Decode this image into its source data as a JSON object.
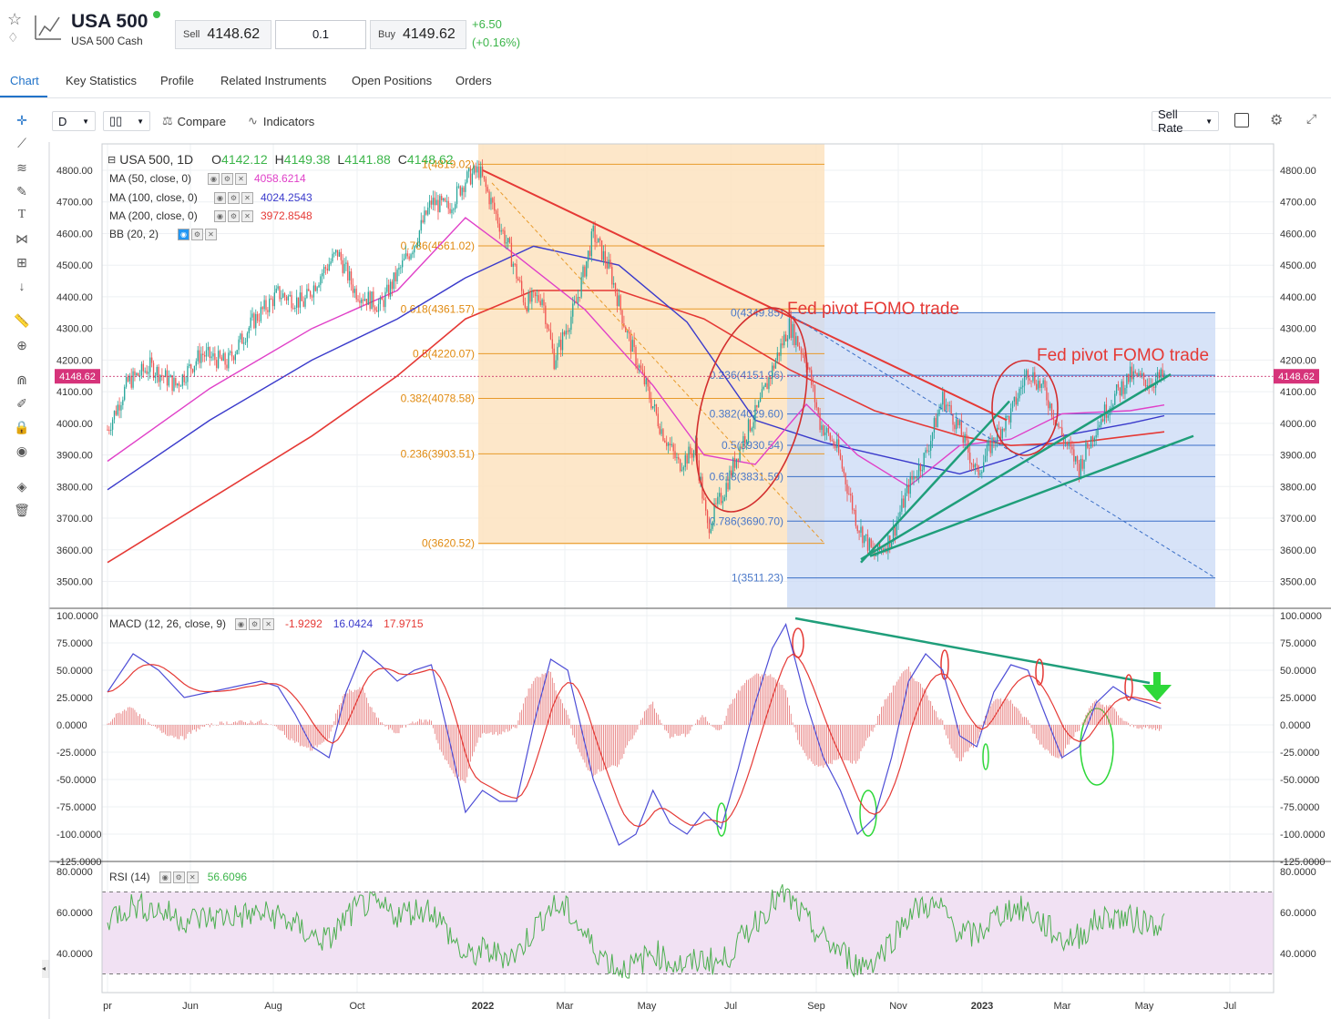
{
  "instrument": {
    "name": "USA 500",
    "subtitle": "USA 500 Cash",
    "sell_label": "Sell",
    "sell_price": "4148.62",
    "quantity": "0.1",
    "buy_label": "Buy",
    "buy_price": "4149.62",
    "change_abs": "+6.50",
    "change_pct": "(+0.16%)"
  },
  "tabs": [
    "Chart",
    "Key Statistics",
    "Profile",
    "Related Instruments",
    "Open Positions",
    "Orders"
  ],
  "active_tab": "Chart",
  "toolbar": {
    "interval": "D",
    "compare_label": "Compare",
    "indicators_label": "Indicators",
    "rate_label": "Sell Rate"
  },
  "chart_data": {
    "type": "candlestick",
    "symbol_label": "USA 500, 1D",
    "ohlc": {
      "o": "4142.12",
      "h": "4149.38",
      "l": "4141.88",
      "c": "4148.62"
    },
    "last_price_tag": "4148.62",
    "ylim": [
      3470,
      4860
    ],
    "price_ticks": [
      "4800.00",
      "4700.00",
      "4600.00",
      "4500.00",
      "4400.00",
      "4300.00",
      "4200.00",
      "4100.00",
      "4000.00",
      "3900.00",
      "3800.00",
      "3700.00",
      "3600.00",
      "3500.00"
    ],
    "x_ticks": [
      "pr",
      "Jun",
      "Aug",
      "Oct",
      "2022",
      "Mar",
      "May",
      "Jul",
      "Sep",
      "Nov",
      "2023",
      "Mar",
      "May",
      "Jul"
    ],
    "moving_averages": [
      {
        "label": "MA (50, close, 0)",
        "value": "4058.6214",
        "color": "#e040c8"
      },
      {
        "label": "MA (100, close, 0)",
        "value": "4024.2543",
        "color": "#3a3acb"
      },
      {
        "label": "MA (200, close, 0)",
        "value": "3972.8548",
        "color": "#e53935"
      },
      {
        "label": "BB (20, 2)",
        "value": "",
        "color": "#888888"
      }
    ],
    "price_path": [
      [
        0,
        3980
      ],
      [
        12,
        4130
      ],
      [
        25,
        4180
      ],
      [
        40,
        4120
      ],
      [
        55,
        4220
      ],
      [
        70,
        4190
      ],
      [
        85,
        4320
      ],
      [
        100,
        4410
      ],
      [
        115,
        4380
      ],
      [
        125,
        4470
      ],
      [
        135,
        4540
      ],
      [
        145,
        4420
      ],
      [
        160,
        4370
      ],
      [
        170,
        4470
      ],
      [
        180,
        4570
      ],
      [
        190,
        4700
      ],
      [
        200,
        4680
      ],
      [
        210,
        4770
      ],
      [
        218,
        4800
      ],
      [
        225,
        4700
      ],
      [
        235,
        4560
      ],
      [
        245,
        4380
      ],
      [
        255,
        4400
      ],
      [
        262,
        4200
      ],
      [
        275,
        4380
      ],
      [
        285,
        4600
      ],
      [
        295,
        4480
      ],
      [
        305,
        4280
      ],
      [
        315,
        4130
      ],
      [
        325,
        3980
      ],
      [
        335,
        3870
      ],
      [
        345,
        3920
      ],
      [
        352,
        3670
      ],
      [
        362,
        3790
      ],
      [
        372,
        3940
      ],
      [
        382,
        4050
      ],
      [
        392,
        4200
      ],
      [
        400,
        4310
      ],
      [
        410,
        4200
      ],
      [
        418,
        4000
      ],
      [
        428,
        3920
      ],
      [
        440,
        3680
      ],
      [
        450,
        3580
      ],
      [
        460,
        3640
      ],
      [
        470,
        3800
      ],
      [
        480,
        3900
      ],
      [
        490,
        4080
      ],
      [
        500,
        3980
      ],
      [
        510,
        3840
      ],
      [
        520,
        3950
      ],
      [
        530,
        4030
      ],
      [
        540,
        4170
      ],
      [
        550,
        4100
      ],
      [
        560,
        3960
      ],
      [
        570,
        3860
      ],
      [
        580,
        3990
      ],
      [
        590,
        4080
      ],
      [
        600,
        4150
      ],
      [
        612,
        4130
      ],
      [
        620,
        4148
      ]
    ],
    "ma_paths": {
      "ma50": [
        [
          0,
          3880
        ],
        [
          60,
          4110
        ],
        [
          120,
          4300
        ],
        [
          170,
          4420
        ],
        [
          210,
          4650
        ],
        [
          240,
          4530
        ],
        [
          280,
          4360
        ],
        [
          320,
          4120
        ],
        [
          350,
          3900
        ],
        [
          380,
          3870
        ],
        [
          410,
          4060
        ],
        [
          440,
          3900
        ],
        [
          470,
          3800
        ],
        [
          500,
          3930
        ],
        [
          530,
          3950
        ],
        [
          560,
          4030
        ],
        [
          600,
          4040
        ],
        [
          620,
          4058
        ]
      ],
      "ma100": [
        [
          0,
          3790
        ],
        [
          60,
          4010
        ],
        [
          120,
          4200
        ],
        [
          170,
          4330
        ],
        [
          210,
          4460
        ],
        [
          250,
          4560
        ],
        [
          300,
          4500
        ],
        [
          340,
          4320
        ],
        [
          380,
          4010
        ],
        [
          420,
          3940
        ],
        [
          460,
          3890
        ],
        [
          500,
          3840
        ],
        [
          530,
          3890
        ],
        [
          560,
          3960
        ],
        [
          600,
          4000
        ],
        [
          620,
          4024
        ]
      ],
      "ma200": [
        [
          0,
          3560
        ],
        [
          60,
          3760
        ],
        [
          120,
          3960
        ],
        [
          170,
          4150
        ],
        [
          210,
          4330
        ],
        [
          250,
          4420
        ],
        [
          300,
          4420
        ],
        [
          350,
          4330
        ],
        [
          400,
          4170
        ],
        [
          450,
          4040
        ],
        [
          500,
          3960
        ],
        [
          530,
          3930
        ],
        [
          570,
          3940
        ],
        [
          600,
          3960
        ],
        [
          620,
          3973
        ]
      ]
    },
    "fib_left": {
      "levels": [
        {
          "label": "1(4819.02)",
          "value": 4819
        },
        {
          "label": "0.786(4561.02)",
          "value": 4561
        },
        {
          "label": "0.618(4361.57)",
          "value": 4361.57
        },
        {
          "label": "0.5(4220.07)",
          "value": 4220.07
        },
        {
          "label": "0.382(4078.58)",
          "value": 4078.58
        },
        {
          "label": "0.236(3903.51)",
          "value": 3903.51
        },
        {
          "label": "0(3620.52)",
          "value": 3620.52
        }
      ]
    },
    "fib_right": {
      "levels": [
        {
          "label": "0(4349.85)",
          "value": 4349.85
        },
        {
          "label": "0.236(4151.96)",
          "value": 4151.96
        },
        {
          "label": "0.382(4029.60)",
          "value": 4029.6
        },
        {
          "label": "0.5(3930.54)",
          "value": 3930.54
        },
        {
          "label": "0.618(3831.59)",
          "value": 3831.59
        },
        {
          "label": "0.786(3690.70)",
          "value": 3690.7
        },
        {
          "label": "1(3511.23)",
          "value": 3511.23
        }
      ]
    },
    "annotations": [
      "Fed pivot FOMO trade",
      "Fed pivot FOMO trade"
    ],
    "macd": {
      "label": "MACD (12, 26, close, 9)",
      "values": [
        "-1.9292",
        "16.0424",
        "17.9715"
      ],
      "ylim": [
        -125,
        100
      ],
      "ticks": [
        "100.0000",
        "75.0000",
        "50.0000",
        "25.0000",
        "0.0000",
        "-25.0000",
        "-50.0000",
        "-75.0000",
        "-100.0000",
        "-125.0000"
      ],
      "line": [
        [
          0,
          30
        ],
        [
          15,
          65
        ],
        [
          30,
          50
        ],
        [
          45,
          25
        ],
        [
          60,
          30
        ],
        [
          75,
          35
        ],
        [
          90,
          40
        ],
        [
          100,
          35
        ],
        [
          110,
          10
        ],
        [
          120,
          -20
        ],
        [
          130,
          -30
        ],
        [
          140,
          30
        ],
        [
          150,
          68
        ],
        [
          160,
          55
        ],
        [
          170,
          40
        ],
        [
          180,
          50
        ],
        [
          190,
          55
        ],
        [
          200,
          -10
        ],
        [
          210,
          -80
        ],
        [
          220,
          -60
        ],
        [
          230,
          -70
        ],
        [
          240,
          -70
        ],
        [
          250,
          0
        ],
        [
          260,
          60
        ],
        [
          270,
          50
        ],
        [
          285,
          -50
        ],
        [
          300,
          -110
        ],
        [
          310,
          -100
        ],
        [
          320,
          -60
        ],
        [
          330,
          -90
        ],
        [
          340,
          -100
        ],
        [
          350,
          -80
        ],
        [
          360,
          -95
        ],
        [
          370,
          -40
        ],
        [
          380,
          20
        ],
        [
          390,
          70
        ],
        [
          398,
          92
        ],
        [
          410,
          20
        ],
        [
          420,
          -30
        ],
        [
          430,
          -60
        ],
        [
          440,
          -100
        ],
        [
          450,
          -85
        ],
        [
          460,
          -30
        ],
        [
          470,
          40
        ],
        [
          480,
          65
        ],
        [
          490,
          50
        ],
        [
          500,
          -10
        ],
        [
          510,
          -20
        ],
        [
          520,
          30
        ],
        [
          530,
          55
        ],
        [
          540,
          50
        ],
        [
          550,
          10
        ],
        [
          560,
          -30
        ],
        [
          570,
          -20
        ],
        [
          580,
          20
        ],
        [
          590,
          35
        ],
        [
          600,
          25
        ],
        [
          610,
          20
        ],
        [
          618,
          15
        ]
      ]
    },
    "rsi": {
      "label": "RSI (14)",
      "value": "56.6096",
      "ylim": [
        25,
        82
      ],
      "ticks": [
        "80.0000",
        "60.0000",
        "40.0000"
      ],
      "band": [
        30,
        70
      ]
    }
  }
}
